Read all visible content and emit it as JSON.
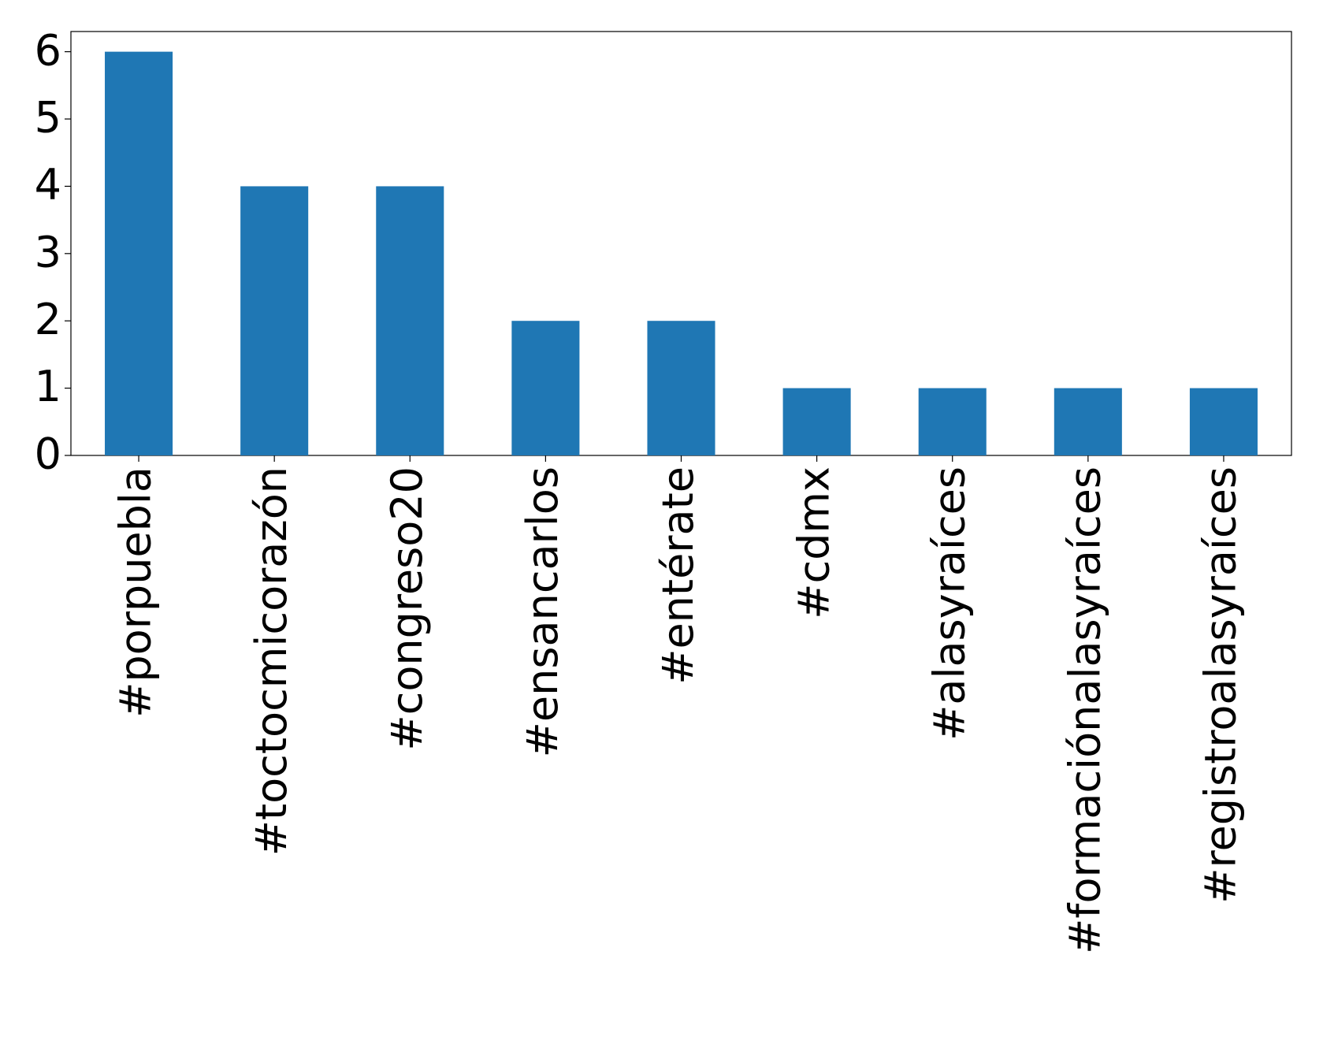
{
  "chart_data": {
    "type": "bar",
    "categories": [
      "#porpuebla",
      "#toctocmicorazón",
      "#congreso20",
      "#ensancarlos",
      "#entérate",
      "#cdmx",
      "#alasyraíces",
      "#formaciónalasyraíces",
      "#registroalasyraíces"
    ],
    "values": [
      6,
      4,
      4,
      2,
      2,
      1,
      1,
      1,
      1
    ],
    "color": "#1f77b4",
    "ylim": [
      0,
      6.3
    ],
    "yticks": [
      0,
      1,
      2,
      3,
      4,
      5,
      6
    ],
    "grid": false
  }
}
